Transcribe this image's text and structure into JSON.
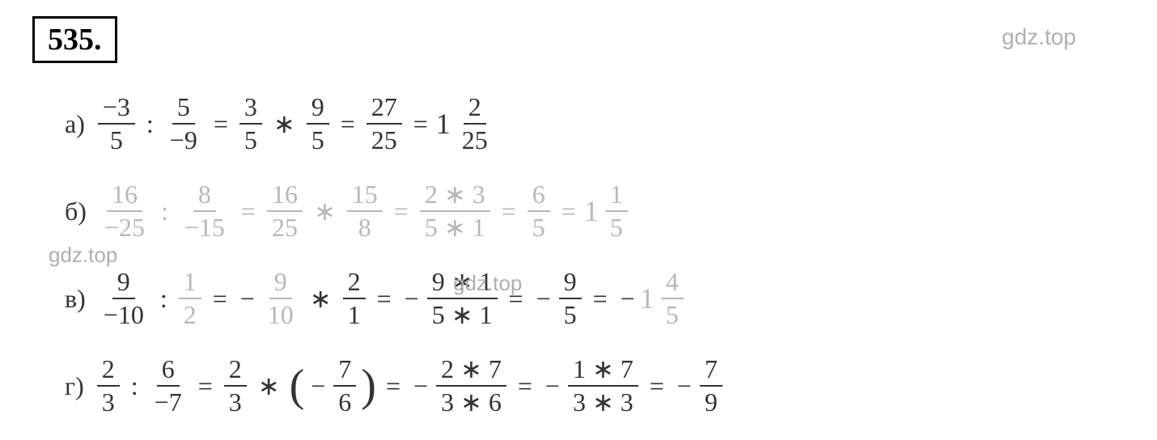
{
  "problem_number": "535.",
  "watermarks": {
    "top_right": "gdz.top",
    "mid_left": "gdz.top",
    "mid_center": "gdz.top"
  },
  "text_color": "#333333",
  "faded_color": "#b8b8b8",
  "background_color": "#ffffff",
  "font_family": "Times New Roman, serif",
  "base_fontsize": 32,
  "number_box": {
    "border_color": "#000000",
    "border_width": 3,
    "font_weight": "bold",
    "fontsize": 38
  },
  "equations": [
    {
      "label": "а)",
      "faded": false,
      "terms": [
        {
          "type": "frac",
          "num": "−3",
          "den": "5"
        },
        {
          "type": "op",
          "v": ":"
        },
        {
          "type": "frac",
          "num": "5",
          "den": "−9"
        },
        {
          "type": "eq"
        },
        {
          "type": "frac",
          "num": "3",
          "den": "5"
        },
        {
          "type": "op",
          "v": "∗"
        },
        {
          "type": "frac",
          "num": "9",
          "den": "5"
        },
        {
          "type": "eq"
        },
        {
          "type": "frac",
          "num": "27",
          "den": "25"
        },
        {
          "type": "eq"
        },
        {
          "type": "mixed",
          "whole": "1",
          "num": "2",
          "den": "25"
        }
      ]
    },
    {
      "label": "б)",
      "faded": true,
      "terms": [
        {
          "type": "frac",
          "num": "16",
          "den": "−25"
        },
        {
          "type": "op",
          "v": ":"
        },
        {
          "type": "frac",
          "num": "8",
          "den": "−15"
        },
        {
          "type": "eq"
        },
        {
          "type": "frac",
          "num": "16",
          "den": "25"
        },
        {
          "type": "op",
          "v": "∗"
        },
        {
          "type": "frac",
          "num": "15",
          "den": "8"
        },
        {
          "type": "eq"
        },
        {
          "type": "frac",
          "num": "2 ∗ 3",
          "den": "5 ∗ 1"
        },
        {
          "type": "eq"
        },
        {
          "type": "frac",
          "num": "6",
          "den": "5"
        },
        {
          "type": "eq"
        },
        {
          "type": "mixed",
          "whole": "1",
          "num": "1",
          "den": "5"
        }
      ]
    },
    {
      "label": "в)",
      "faded": false,
      "terms": [
        {
          "type": "frac",
          "num": "9",
          "den": "−10"
        },
        {
          "type": "op",
          "v": ":"
        },
        {
          "type": "frac",
          "num": "1",
          "den": "2",
          "faded": true
        },
        {
          "type": "eq"
        },
        {
          "type": "neg"
        },
        {
          "type": "frac",
          "num": "9",
          "den": "10",
          "faded": true
        },
        {
          "type": "op",
          "v": "∗"
        },
        {
          "type": "frac",
          "num": "2",
          "den": "1"
        },
        {
          "type": "eq"
        },
        {
          "type": "neg"
        },
        {
          "type": "frac",
          "num": "9 ∗ 1",
          "den": "5 ∗ 1"
        },
        {
          "type": "eq"
        },
        {
          "type": "neg"
        },
        {
          "type": "frac",
          "num": "9",
          "den": "5"
        },
        {
          "type": "eq"
        },
        {
          "type": "neg"
        },
        {
          "type": "mixed",
          "whole": "1",
          "num": "4",
          "den": "5",
          "faded": true
        }
      ]
    },
    {
      "label": "г)",
      "faded": false,
      "terms": [
        {
          "type": "frac",
          "num": "2",
          "den": "3"
        },
        {
          "type": "op",
          "v": ":"
        },
        {
          "type": "frac",
          "num": "6",
          "den": "−7"
        },
        {
          "type": "eq"
        },
        {
          "type": "frac",
          "num": "2",
          "den": "3"
        },
        {
          "type": "op",
          "v": "∗"
        },
        {
          "type": "paren_open"
        },
        {
          "type": "neg"
        },
        {
          "type": "frac",
          "num": "7",
          "den": "6"
        },
        {
          "type": "paren_close"
        },
        {
          "type": "eq"
        },
        {
          "type": "neg"
        },
        {
          "type": "frac",
          "num": "2 ∗ 7",
          "den": "3 ∗ 6"
        },
        {
          "type": "eq"
        },
        {
          "type": "neg"
        },
        {
          "type": "frac",
          "num": "1 ∗ 7",
          "den": "3 ∗ 3"
        },
        {
          "type": "eq"
        },
        {
          "type": "neg"
        },
        {
          "type": "frac",
          "num": "7",
          "den": "9"
        }
      ]
    }
  ]
}
